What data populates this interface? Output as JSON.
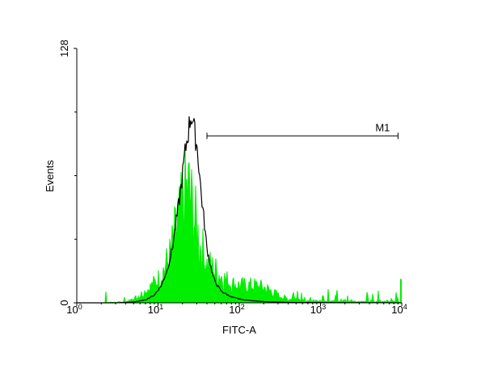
{
  "chart_data": {
    "type": "area",
    "xlabel": "FITC-A",
    "ylabel": "Events",
    "x_scale": "log",
    "xlim": [
      1,
      10000
    ],
    "ylim": [
      0,
      128
    ],
    "x_ticks": [
      {
        "base": "10",
        "exp": "0",
        "value": 1
      },
      {
        "base": "10",
        "exp": "1",
        "value": 10
      },
      {
        "base": "10",
        "exp": "2",
        "value": 100
      },
      {
        "base": "10",
        "exp": "3",
        "value": 1000
      },
      {
        "base": "10",
        "exp": "4",
        "value": 10000
      }
    ],
    "y_ticks": [
      {
        "label": "0",
        "value": 0
      },
      {
        "label": "128",
        "value": 128
      }
    ],
    "grid": false,
    "marker": {
      "label": "M1",
      "x_start": 40,
      "x_end": 9000,
      "y": 84
    },
    "series": [
      {
        "role": "control",
        "color": "#000000",
        "fill": "none",
        "points": [
          [
            1,
            0
          ],
          [
            3,
            0
          ],
          [
            5,
            0.4
          ],
          [
            7,
            1.5
          ],
          [
            9,
            4
          ],
          [
            11,
            9
          ],
          [
            13,
            17
          ],
          [
            15,
            28
          ],
          [
            17,
            44
          ],
          [
            19,
            58
          ],
          [
            20,
            66
          ],
          [
            21,
            74
          ],
          [
            22,
            80
          ],
          [
            23,
            86
          ],
          [
            24,
            90
          ],
          [
            25,
            96
          ],
          [
            26,
            97
          ],
          [
            27,
            94
          ],
          [
            28,
            88
          ],
          [
            30,
            82
          ],
          [
            32,
            70
          ],
          [
            34,
            56
          ],
          [
            37,
            42
          ],
          [
            40,
            28
          ],
          [
            45,
            18
          ],
          [
            50,
            11
          ],
          [
            60,
            6
          ],
          [
            80,
            3
          ],
          [
            110,
            1.6
          ],
          [
            200,
            0.6
          ],
          [
            400,
            0.2
          ],
          [
            10000,
            0
          ]
        ]
      },
      {
        "role": "sample",
        "color": "#00ee00",
        "fill": "#00ee00",
        "noisy": true,
        "points": [
          [
            1,
            0
          ],
          [
            2,
            0
          ],
          [
            4,
            0.5
          ],
          [
            5,
            2
          ],
          [
            6,
            4
          ],
          [
            8,
            8
          ],
          [
            10,
            12
          ],
          [
            12,
            18
          ],
          [
            14,
            24
          ],
          [
            16,
            34
          ],
          [
            18,
            42
          ],
          [
            20,
            48
          ],
          [
            22,
            56
          ],
          [
            24,
            58
          ],
          [
            26,
            50
          ],
          [
            28,
            44
          ],
          [
            30,
            38
          ],
          [
            33,
            30
          ],
          [
            36,
            26
          ],
          [
            40,
            20
          ],
          [
            50,
            17
          ],
          [
            60,
            14
          ],
          [
            80,
            10
          ],
          [
            100,
            9
          ],
          [
            150,
            9
          ],
          [
            200,
            8
          ],
          [
            250,
            6
          ],
          [
            300,
            4
          ],
          [
            400,
            2
          ],
          [
            600,
            1.2
          ],
          [
            1000,
            1
          ],
          [
            3000,
            0.6
          ],
          [
            9000,
            0.6
          ],
          [
            10000,
            0
          ]
        ]
      }
    ],
    "series_peaks": [
      97,
      62
    ]
  }
}
